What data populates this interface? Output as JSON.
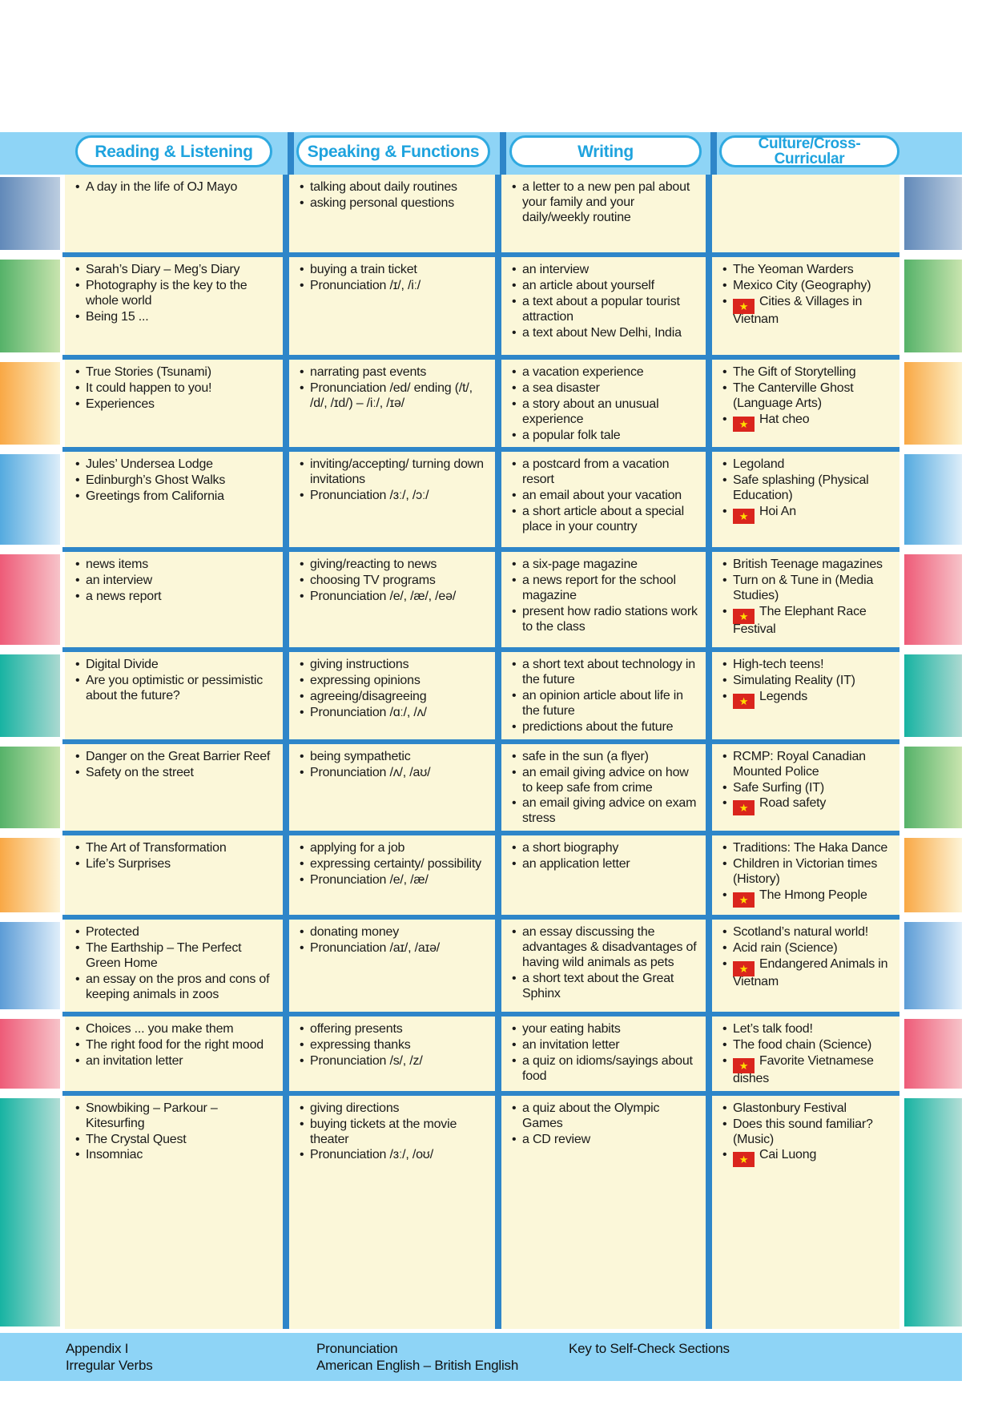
{
  "header": {
    "columns": [
      "Reading & Listening",
      "Speaking & Functions",
      "Writing",
      "Culture/Cross-Curricular"
    ]
  },
  "colors": {
    "band": "#8ED4F6",
    "separator_blue": "#2E86C9",
    "cell_cream": "#FBF7D9",
    "pill_text": "#1FA3DE",
    "flag_red": "#DA251D",
    "flag_star_yellow": "#FFDE00"
  },
  "rows": [
    {
      "bar_from": "#6189B9",
      "bar_to": "#BCCDE0",
      "reading": [
        "A day in the life of OJ Mayo"
      ],
      "speaking": [
        "talking about daily routines",
        "asking personal questions"
      ],
      "writing": [
        "a letter to a new pen pal about your family and your daily/weekly routine"
      ],
      "culture": []
    },
    {
      "bar_from": "#55B269",
      "bar_to": "#C8E4AE",
      "reading": [
        "Sarah’s Diary – Meg’s Diary",
        "Photography is the key to the whole world",
        "Being 15 ..."
      ],
      "speaking": [
        "buying a train ticket",
        "Pronunciation /ɪ/, /iː/"
      ],
      "writing": [
        "an interview",
        "an article about yourself",
        "a text about a popular tourist attraction",
        "a text about New Delhi, India"
      ],
      "culture": [
        {
          "flag": false,
          "text": "The Yeoman Warders"
        },
        {
          "flag": false,
          "text": "Mexico City (Geography)"
        },
        {
          "flag": true,
          "text": "Cities & Villages in Vietnam"
        }
      ]
    },
    {
      "bar_from": "#F9A845",
      "bar_to": "#FDF0C8",
      "reading": [
        "True Stories (Tsunami)",
        "It could happen to you!",
        "Experiences"
      ],
      "speaking": [
        "narrating past events",
        "Pronunciation /ed/ ending (/t/, /d/, /ɪd/) – /iː/, /ɪə/"
      ],
      "writing": [
        "a vacation experience",
        "a sea disaster",
        "a story about an unusual experience",
        "a popular folk tale"
      ],
      "culture": [
        {
          "flag": false,
          "text": "The Gift of Storytelling"
        },
        {
          "flag": false,
          "text": "The Canterville Ghost (Language Arts)"
        },
        {
          "flag": true,
          "text": "Hat cheo"
        }
      ]
    },
    {
      "bar_from": "#54AADF",
      "bar_to": "#DCEDF9",
      "reading": [
        "Jules’ Undersea Lodge",
        "Edinburgh’s Ghost Walks",
        "Greetings from California"
      ],
      "speaking": [
        "inviting/accepting/ turning down invitations",
        "Pronunciation /ɜː/, /ɔː/"
      ],
      "writing": [
        "a postcard from a vacation resort",
        "an email about your vacation",
        "a short article about a special place in your country"
      ],
      "culture": [
        {
          "flag": false,
          "text": "Legoland"
        },
        {
          "flag": false,
          "text": "Safe splashing (Physical Education)"
        },
        {
          "flag": true,
          "text": "Hoi An"
        }
      ]
    },
    {
      "bar_from": "#EE5B78",
      "bar_to": "#F7C3C9",
      "reading": [
        "news items",
        "an interview",
        "a news report"
      ],
      "speaking": [
        "giving/reacting to news",
        "choosing TV programs",
        "Pronunciation /e/, /æ/, /eə/"
      ],
      "writing": [
        "a six-page magazine",
        "a news report for the school magazine",
        "present how radio stations work to the class"
      ],
      "culture": [
        {
          "flag": false,
          "text": "British Teenage magazines"
        },
        {
          "flag": false,
          "text": "Turn on & Tune in (Media Studies)"
        },
        {
          "flag": true,
          "text": "The Elephant Race Festival"
        }
      ]
    },
    {
      "bar_from": "#17B3A2",
      "bar_to": "#ABD9D1",
      "reading": [
        "Digital Divide",
        "Are you optimistic or pessimistic about the future?"
      ],
      "speaking": [
        "giving instructions",
        "expressing opinions",
        "agreeing/disagreeing",
        "Pronunciation /ɑː/, /ʌ/"
      ],
      "writing": [
        "a short text about technology in the future",
        "an opinion article about life in the future",
        "predictions about the future"
      ],
      "culture": [
        {
          "flag": false,
          "text": "High-tech teens!"
        },
        {
          "flag": false,
          "text": "Simulating Reality (IT)"
        },
        {
          "flag": true,
          "text": "Legends"
        }
      ]
    },
    {
      "bar_from": "#55B269",
      "bar_to": "#C8E4AE",
      "reading": [
        "Danger on the Great Barrier Reef",
        "Safety on the street"
      ],
      "speaking": [
        "being sympathetic",
        "Pronunciation /ʌ/, /aʊ/"
      ],
      "writing": [
        "safe in the sun (a flyer)",
        "an email giving advice on how to keep safe from crime",
        "an email giving advice on exam stress"
      ],
      "culture": [
        {
          "flag": false,
          "text": "RCMP: Royal Canadian Mounted Police"
        },
        {
          "flag": false,
          "text": "Safe Surfing (IT)"
        },
        {
          "flag": true,
          "text": "Road safety"
        }
      ]
    },
    {
      "bar_from": "#F9A845",
      "bar_to": "#FDF4D6",
      "reading": [
        "The Art of Transformation",
        "Life’s Surprises"
      ],
      "speaking": [
        "applying for a job",
        "expressing certainty/ possibility",
        "Pronunciation /e/, /æ/"
      ],
      "writing": [
        "a short biography",
        "an application letter"
      ],
      "culture": [
        {
          "flag": false,
          "text": "Traditions: The Haka Dance"
        },
        {
          "flag": false,
          "text": "Children in Victorian times (History)"
        },
        {
          "flag": true,
          "text": "The Hmong People"
        }
      ]
    },
    {
      "bar_from": "#5C9CD6",
      "bar_to": "#DFEEFA",
      "reading": [
        "Protected",
        "The Earthship – The Perfect Green Home",
        "an essay on the pros and cons of keeping animals in zoos"
      ],
      "speaking": [
        "donating money",
        "Pronunciation /aɪ/, /aɪə/"
      ],
      "writing": [
        "an essay discussing the advantages & disadvantages of having wild animals as pets",
        "a short text about the Great Sphinx"
      ],
      "culture": [
        {
          "flag": false,
          "text": "Scotland’s natural world!"
        },
        {
          "flag": false,
          "text": "Acid rain (Science)"
        },
        {
          "flag": true,
          "text": "Endangered Animals in Vietnam"
        }
      ]
    },
    {
      "bar_from": "#EE5B78",
      "bar_to": "#F7C3C9",
      "reading": [
        "Choices ... you make them",
        "The right food for the right mood",
        "an invitation letter"
      ],
      "speaking": [
        "offering presents",
        "expressing thanks",
        "Pronunciation /s/, /z/"
      ],
      "writing": [
        "your eating habits",
        "an invitation letter",
        "a quiz on idioms/sayings about food"
      ],
      "culture": [
        {
          "flag": false,
          "text": "Let’s talk food!"
        },
        {
          "flag": false,
          "text": "The food chain (Science)"
        },
        {
          "flag": true,
          "text": "Favorite Vietnamese dishes"
        }
      ]
    },
    {
      "bar_from": "#17B3A2",
      "bar_to": "#B2DED6",
      "reading": [
        "Snowbiking – Parkour – Kitesurfing",
        "The Crystal Quest",
        "Insomniac"
      ],
      "speaking": [
        "giving directions",
        "buying tickets at the movie theater",
        "Pronunciation /ɜː/, /oʊ/"
      ],
      "writing": [
        "a quiz about the Olympic Games",
        "a CD review"
      ],
      "culture": [
        {
          "flag": false,
          "text": "Glastonbury Festival"
        },
        {
          "flag": false,
          "text": "Does this sound familiar? (Music)"
        },
        {
          "flag": true,
          "text": "Cai Luong"
        }
      ]
    }
  ],
  "footer": {
    "items": [
      {
        "line1": "Appendix I",
        "line2": "Irregular Verbs"
      },
      {
        "line1": "Pronunciation",
        "line2": "American English – British English"
      },
      {
        "line1": "Key to Self-Check Sections",
        "line2": ""
      }
    ]
  }
}
